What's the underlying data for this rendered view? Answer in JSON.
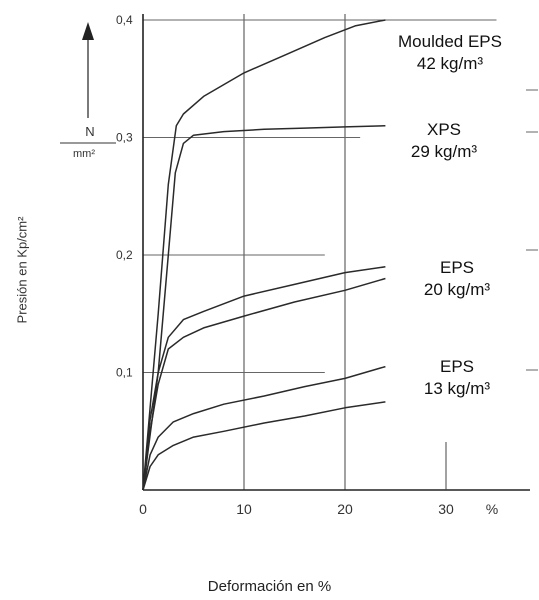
{
  "chart_data": {
    "type": "line",
    "title": "",
    "xlabel": "Deformación en %",
    "ylabel": "Presión en Kp/cm²",
    "y_unit_label": {
      "numerator": "N",
      "denominator": "mm²"
    },
    "xlim": [
      0,
      30
    ],
    "ylim": [
      0,
      0.4
    ],
    "x_ticks": [
      "0",
      "10",
      "20",
      "30",
      "%"
    ],
    "y_ticks": [
      "0,1",
      "0,2",
      "0,3",
      "0,4"
    ],
    "grid": true,
    "series": [
      {
        "name": "Moulded EPS",
        "density": "42 kg/m³",
        "line_color": "#2a2a2a",
        "points": [
          [
            0,
            0
          ],
          [
            1.5,
            0.15
          ],
          [
            2.5,
            0.26
          ],
          [
            3.3,
            0.31
          ],
          [
            4,
            0.32
          ],
          [
            6,
            0.335
          ],
          [
            8,
            0.345
          ],
          [
            10,
            0.355
          ],
          [
            14,
            0.37
          ],
          [
            18,
            0.385
          ],
          [
            21,
            0.395
          ],
          [
            24,
            0.4
          ]
        ]
      },
      {
        "name": "XPS",
        "density": "29 kg/m³",
        "line_color": "#2a2a2a",
        "points": [
          [
            0,
            0
          ],
          [
            1.5,
            0.1
          ],
          [
            2.5,
            0.2
          ],
          [
            3.2,
            0.27
          ],
          [
            4,
            0.295
          ],
          [
            5,
            0.302
          ],
          [
            8,
            0.305
          ],
          [
            12,
            0.307
          ],
          [
            16,
            0.308
          ],
          [
            20,
            0.309
          ],
          [
            24,
            0.31
          ]
        ]
      },
      {
        "name": "EPS",
        "density": "20 kg/m³",
        "line_color": "#2a2a2a",
        "points": [
          [
            0,
            0
          ],
          [
            0.7,
            0.06
          ],
          [
            1.5,
            0.1
          ],
          [
            2.5,
            0.13
          ],
          [
            4,
            0.145
          ],
          [
            6,
            0.152
          ],
          [
            10,
            0.165
          ],
          [
            15,
            0.175
          ],
          [
            20,
            0.185
          ],
          [
            24,
            0.19
          ]
        ]
      },
      {
        "name": "EPS",
        "density": "20 kg/m³",
        "line_color": "#2a2a2a",
        "points": [
          [
            0,
            0
          ],
          [
            0.7,
            0.05
          ],
          [
            1.5,
            0.09
          ],
          [
            2.5,
            0.12
          ],
          [
            4,
            0.13
          ],
          [
            6,
            0.138
          ],
          [
            10,
            0.148
          ],
          [
            15,
            0.16
          ],
          [
            20,
            0.17
          ],
          [
            24,
            0.18
          ]
        ]
      },
      {
        "name": "EPS",
        "density": "13 kg/m³",
        "line_color": "#2a2a2a",
        "points": [
          [
            0,
            0
          ],
          [
            0.7,
            0.03
          ],
          [
            1.5,
            0.045
          ],
          [
            3,
            0.058
          ],
          [
            5,
            0.065
          ],
          [
            8,
            0.073
          ],
          [
            12,
            0.08
          ],
          [
            16,
            0.088
          ],
          [
            20,
            0.095
          ],
          [
            24,
            0.105
          ]
        ]
      },
      {
        "name": "EPS",
        "density": "13 kg/m³",
        "line_color": "#2a2a2a",
        "points": [
          [
            0,
            0
          ],
          [
            0.7,
            0.02
          ],
          [
            1.5,
            0.03
          ],
          [
            3,
            0.038
          ],
          [
            5,
            0.045
          ],
          [
            8,
            0.05
          ],
          [
            12,
            0.057
          ],
          [
            16,
            0.063
          ],
          [
            20,
            0.07
          ],
          [
            24,
            0.075
          ]
        ]
      }
    ],
    "series_labels": [
      {
        "name": "Moulded EPS",
        "density": "42 kg/m³"
      },
      {
        "name": "XPS",
        "density": "29 kg/m³"
      },
      {
        "name": "EPS",
        "density": "20 kg/m³"
      },
      {
        "name": "EPS",
        "density": "13 kg/m³"
      }
    ]
  }
}
